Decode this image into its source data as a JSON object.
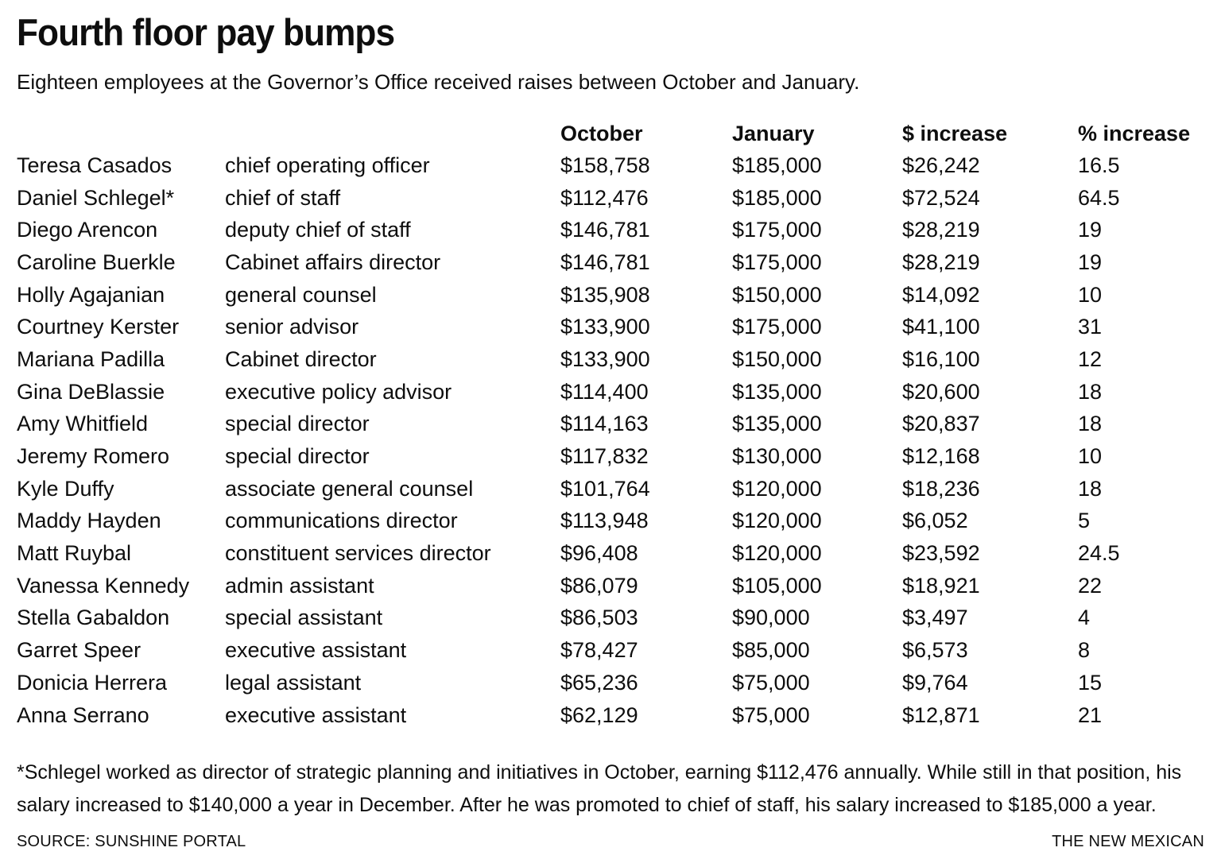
{
  "page": {
    "title": "Fourth floor pay bumps",
    "subtitle": "Eighteen employees at the Governor’s Office received raises between October and January.",
    "footnote_lines": {
      "line1": "*Schlegel worked as director of strategic planning and initiatives in October, earning $112,476 annually. While still in that position, his",
      "line2": "salary increased to $140,000 a year in December. After he was promoted to chief of staff, his salary increased to $185,000 a year."
    },
    "source": "SOURCE: SUNSHINE PORTAL",
    "credit": "THE NEW MEXICAN",
    "colors": {
      "text": "#0e0e0e",
      "background": "#ffffff"
    }
  },
  "chart_data": {
    "type": "table",
    "title": "Fourth floor pay bumps",
    "subtitle": "Eighteen employees at the Governor’s Office received raises between October and January.",
    "column_headers": [
      "October",
      "January",
      "$ increase",
      "% increase"
    ],
    "rows": [
      {
        "name": "Teresa Casados",
        "title": "chief operating officer",
        "october": "$158,758",
        "january": "$185,000",
        "dollar_increase": "$26,242",
        "pct_increase": "16.5"
      },
      {
        "name": "Daniel Schlegel*",
        "title": "chief of staff",
        "october": "$112,476",
        "january": "$185,000",
        "dollar_increase": "$72,524",
        "pct_increase": "64.5"
      },
      {
        "name": "Diego Arencon",
        "title": "deputy chief of staff",
        "october": "$146,781",
        "january": "$175,000",
        "dollar_increase": "$28,219",
        "pct_increase": "19"
      },
      {
        "name": "Caroline Buerkle",
        "title": "Cabinet affairs director",
        "october": "$146,781",
        "january": "$175,000",
        "dollar_increase": "$28,219",
        "pct_increase": "19"
      },
      {
        "name": "Holly Agajanian",
        "title": "general counsel",
        "october": "$135,908",
        "january": "$150,000",
        "dollar_increase": "$14,092",
        "pct_increase": "10"
      },
      {
        "name": "Courtney Kerster",
        "title": "senior advisor",
        "october": "$133,900",
        "january": "$175,000",
        "dollar_increase": "$41,100",
        "pct_increase": "31"
      },
      {
        "name": "Mariana Padilla",
        "title": "Cabinet director",
        "october": "$133,900",
        "january": "$150,000",
        "dollar_increase": "$16,100",
        "pct_increase": "12"
      },
      {
        "name": "Gina DeBlassie",
        "title": "executive policy advisor",
        "october": "$114,400",
        "january": "$135,000",
        "dollar_increase": "$20,600",
        "pct_increase": "18"
      },
      {
        "name": "Amy Whitfield",
        "title": "special director",
        "october": "$114,163",
        "january": "$135,000",
        "dollar_increase": "$20,837",
        "pct_increase": "18"
      },
      {
        "name": "Jeremy Romero",
        "title": "special director",
        "october": "$117,832",
        "january": "$130,000",
        "dollar_increase": "$12,168",
        "pct_increase": "10"
      },
      {
        "name": "Kyle Duffy",
        "title": "associate general counsel",
        "october": "$101,764",
        "january": "$120,000",
        "dollar_increase": "$18,236",
        "pct_increase": "18"
      },
      {
        "name": "Maddy Hayden",
        "title": "communications director",
        "october": "$113,948",
        "january": "$120,000",
        "dollar_increase": "$6,052",
        "pct_increase": "5"
      },
      {
        "name": "Matt Ruybal",
        "title": "constituent services director",
        "october": "$96,408",
        "january": "$120,000",
        "dollar_increase": "$23,592",
        "pct_increase": "24.5"
      },
      {
        "name": "Vanessa Kennedy",
        "title": "admin assistant",
        "october": "$86,079",
        "january": "$105,000",
        "dollar_increase": "$18,921",
        "pct_increase": "22"
      },
      {
        "name": "Stella Gabaldon",
        "title": "special assistant",
        "october": "$86,503",
        "january": "$90,000",
        "dollar_increase": "$3,497",
        "pct_increase": "4"
      },
      {
        "name": "Garret Speer",
        "title": "executive assistant",
        "october": "$78,427",
        "january": "$85,000",
        "dollar_increase": "$6,573",
        "pct_increase": "8"
      },
      {
        "name": "Donicia Herrera",
        "title": "legal assistant",
        "october": "$65,236",
        "january": "$75,000",
        "dollar_increase": "$9,764",
        "pct_increase": "15"
      },
      {
        "name": "Anna Serrano",
        "title": "executive assistant",
        "october": "$62,129",
        "january": "$75,000",
        "dollar_increase": "$12,871",
        "pct_increase": "21"
      }
    ]
  }
}
